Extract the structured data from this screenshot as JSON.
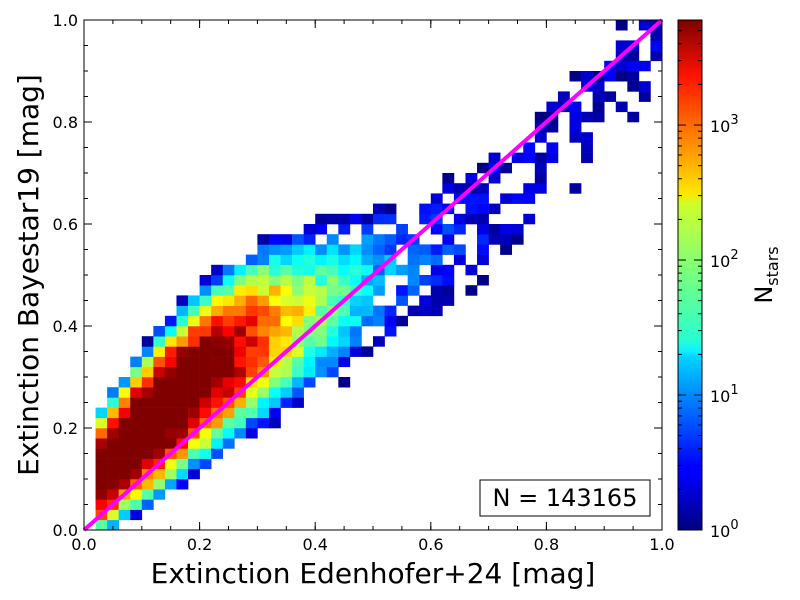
{
  "chart_data": {
    "type": "heatmap",
    "title": "",
    "xlabel": "Extinction Edenhofer+24 [mag]",
    "ylabel": "Extinction Bayestar19 [mag]",
    "xlim": [
      0.0,
      1.0
    ],
    "ylim": [
      0.0,
      1.0
    ],
    "xticks": [
      "0.0",
      "0.2",
      "0.4",
      "0.6",
      "0.8",
      "1.0"
    ],
    "yticks": [
      "0.0",
      "0.2",
      "0.4",
      "0.6",
      "0.8",
      "1.0"
    ],
    "bins": [
      50,
      50
    ],
    "colorbar": {
      "label_main": "N",
      "label_sub": "stars",
      "scale": "log",
      "range": [
        1,
        6000
      ],
      "tick_base": "10",
      "tick_exponents": [
        "0",
        "1",
        "2",
        "3"
      ],
      "tick_values": [
        1,
        10,
        100,
        1000
      ],
      "colormap": "jet"
    },
    "reference_line": {
      "label": "",
      "x": [
        0.0,
        1.0
      ],
      "y": [
        0.0,
        1.0
      ],
      "color": "#ff00ff"
    },
    "annotation": "N = 143165",
    "n_stars": 143165,
    "grid": false
  }
}
